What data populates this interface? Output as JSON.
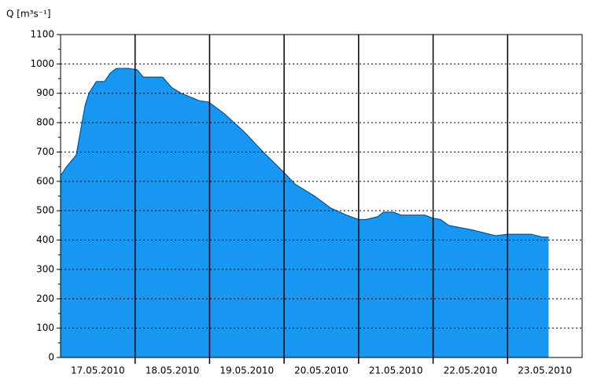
{
  "chart_data": {
    "type": "area",
    "ylabel": "Q [m³s⁻¹]",
    "x": [
      0,
      0.08,
      0.21,
      0.33,
      0.38,
      0.48,
      0.59,
      0.67,
      0.75,
      0.91,
      1.03,
      1.11,
      1.37,
      1.49,
      1.62,
      1.86,
      1.99,
      2.2,
      2.46,
      2.72,
      3.0,
      3.15,
      3.41,
      3.62,
      3.84,
      4.0,
      4.1,
      4.26,
      4.33,
      4.47,
      4.57,
      4.89,
      4.99,
      5.1,
      5.21,
      5.52,
      5.84,
      6.0,
      6.32,
      6.47,
      6.55
    ],
    "values": [
      620,
      650,
      690,
      860,
      900,
      940,
      940,
      970,
      985,
      985,
      980,
      955,
      955,
      920,
      900,
      875,
      870,
      830,
      770,
      700,
      630,
      590,
      550,
      510,
      485,
      470,
      470,
      480,
      495,
      495,
      485,
      485,
      475,
      470,
      450,
      435,
      415,
      420,
      420,
      410,
      410
    ],
    "color": "#1797f2",
    "xlim": [
      0,
      7
    ],
    "xticks": [
      {
        "value": 0.5,
        "label": "17.05.2010"
      },
      {
        "value": 1.5,
        "label": "18.05.2010"
      },
      {
        "value": 2.5,
        "label": "19.05.2010"
      },
      {
        "value": 3.5,
        "label": "20.05.2010"
      },
      {
        "value": 4.5,
        "label": "21.05.2010"
      },
      {
        "value": 5.5,
        "label": "22.05.2010"
      },
      {
        "value": 6.5,
        "label": "23.05.2010"
      }
    ],
    "ylim": [
      0,
      1100
    ],
    "yticks": [
      0,
      100,
      200,
      300,
      400,
      500,
      600,
      700,
      800,
      900,
      1000,
      1100
    ],
    "grid": true
  }
}
